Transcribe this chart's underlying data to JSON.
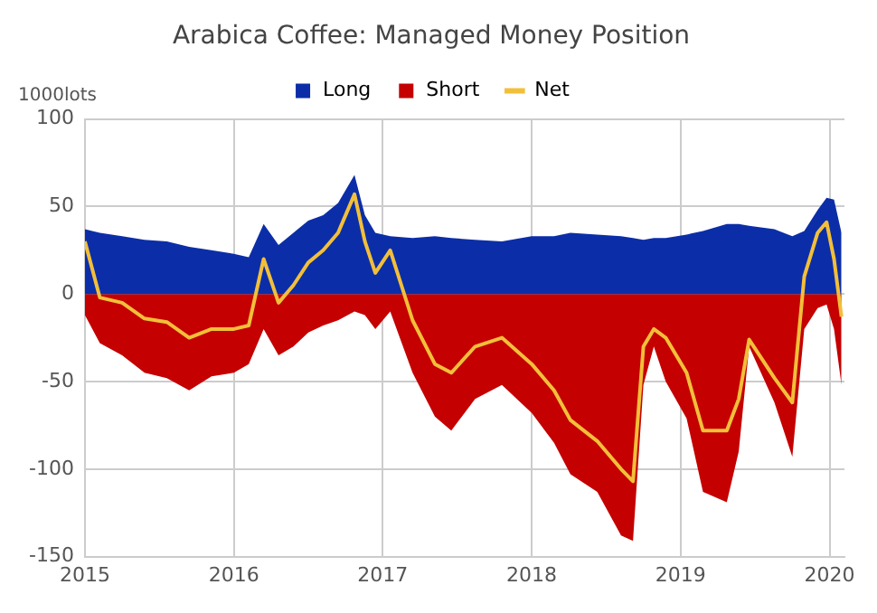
{
  "chart_data": {
    "type": "area",
    "title": "Arabica Coffee: Managed Money Position",
    "ylabel": "1000lots",
    "x": [
      2015.0,
      2015.1,
      2015.25,
      2015.4,
      2015.55,
      2015.7,
      2015.85,
      2016.0,
      2016.1,
      2016.2,
      2016.3,
      2016.4,
      2016.5,
      2016.6,
      2016.7,
      2016.81,
      2016.88,
      2016.95,
      2017.05,
      2017.2,
      2017.35,
      2017.46,
      2017.62,
      2017.8,
      2018.0,
      2018.15,
      2018.26,
      2018.44,
      2018.6,
      2018.68,
      2018.75,
      2018.82,
      2018.9,
      2019.04,
      2019.15,
      2019.31,
      2019.39,
      2019.46,
      2019.63,
      2019.75,
      2019.83,
      2019.92,
      2019.98,
      2020.03,
      2020.08
    ],
    "series": [
      {
        "name": "Long",
        "type": "area",
        "color": "#0b2ea8",
        "values": [
          37,
          35,
          33,
          31,
          30,
          27,
          25,
          23,
          21,
          40,
          28,
          35,
          42,
          45,
          52,
          68,
          45,
          35,
          33,
          32,
          33,
          32,
          31,
          30,
          33,
          33,
          35,
          34,
          33,
          32,
          31,
          32,
          32,
          34,
          36,
          40,
          40,
          39,
          37,
          33,
          36,
          48,
          55,
          54,
          35
        ]
      },
      {
        "name": "Short",
        "type": "area",
        "color": "#c40000",
        "values": [
          -12,
          -28,
          -35,
          -45,
          -48,
          -55,
          -47,
          -45,
          -40,
          -20,
          -35,
          -30,
          -22,
          -18,
          -15,
          -10,
          -12,
          -20,
          -10,
          -45,
          -70,
          -78,
          -60,
          -52,
          -68,
          -85,
          -103,
          -113,
          -138,
          -141,
          -52,
          -30,
          -50,
          -71,
          -113,
          -119,
          -90,
          -30,
          -62,
          -93,
          -20,
          -8,
          -6,
          -20,
          -52
        ]
      },
      {
        "name": "Net",
        "type": "line",
        "color": "#f2bf3a",
        "values": [
          30,
          -2,
          -5,
          -14,
          -16,
          -25,
          -20,
          -20,
          -18,
          20,
          -5,
          5,
          18,
          25,
          35,
          57,
          30,
          12,
          25,
          -15,
          -40,
          -45,
          -30,
          -25,
          -40,
          -55,
          -72,
          -84,
          -100,
          -107,
          -30,
          -20,
          -25,
          -45,
          -78,
          -78,
          -60,
          -26,
          -48,
          -62,
          10,
          35,
          41,
          20,
          -13
        ]
      }
    ],
    "xlim": [
      2015,
      2020.1
    ],
    "xticks": [
      2015,
      2016,
      2017,
      2018,
      2019,
      2020
    ],
    "ylim": [
      -150,
      100
    ],
    "yticks": [
      -150,
      -100,
      -50,
      0,
      50,
      100
    ],
    "grid": true,
    "legend": "top",
    "marker": "none",
    "line_style": "solid"
  }
}
